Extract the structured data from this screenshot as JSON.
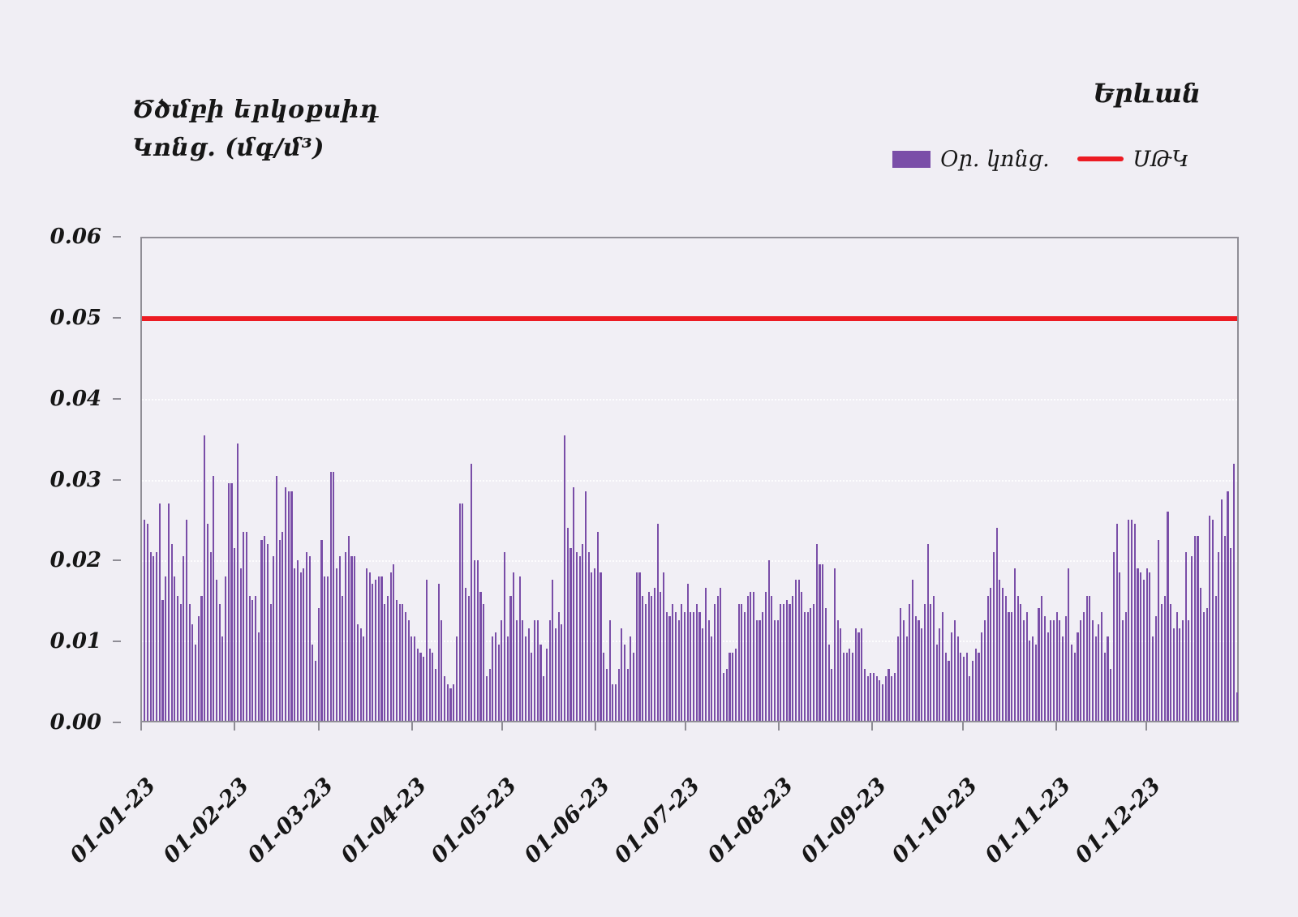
{
  "header": {
    "title_line1": "Ծծմբի երկօքսիդ",
    "title_line2": "Կոնց. (մգ/մ³)",
    "city": "Երևան"
  },
  "legend": {
    "bar_label": "Օր. կոնց.",
    "line_label": "ՍԹԿ",
    "bar_color": "#7643a8",
    "line_color": "#ec1b23"
  },
  "chart_data": {
    "type": "bar",
    "title": "Ծծմբի երկօքսիդ Կոնց. (մգ/մ³) — Երևան",
    "xlabel": "",
    "ylabel": "Կոնց. (մգ/մ³)",
    "ylim": [
      0,
      0.06
    ],
    "y_tick_values": [
      0,
      0.01,
      0.02,
      0.03,
      0.04,
      0.05,
      0.06
    ],
    "y_tick_labels": [
      "0.00",
      "0.01",
      "0.02",
      "0.03",
      "0.04",
      "0.05",
      "0.06"
    ],
    "grid": "faint dotted horizontal gridlines at each y tick",
    "legend_position": "top-right",
    "series_name": "Օր. կոնց.",
    "limit_line": {
      "name": "ՍԹԿ",
      "value": 0.05,
      "color": "#ec1b23"
    },
    "bar_color": "#7a4ea8",
    "x_tick_labels": [
      "01-01-23",
      "01-02-23",
      "01-03-23",
      "01-04-23",
      "01-05-23",
      "01-06-23",
      "01-07-23",
      "01-08-23",
      "01-09-23",
      "01-10-23",
      "01-11-23",
      "01-12-23"
    ],
    "month_start_day_index": [
      0,
      31,
      59,
      90,
      120,
      151,
      181,
      212,
      243,
      273,
      304,
      334
    ],
    "days_total": 365,
    "values": [
      0.025,
      0.0245,
      0.021,
      0.0205,
      0.021,
      0.027,
      0.015,
      0.018,
      0.027,
      0.022,
      0.018,
      0.0155,
      0.0145,
      0.0205,
      0.025,
      0.0145,
      0.012,
      0.0095,
      0.013,
      0.0155,
      0.0355,
      0.0245,
      0.021,
      0.0305,
      0.0175,
      0.0145,
      0.0105,
      0.018,
      0.0295,
      0.0295,
      0.0215,
      0.0345,
      0.019,
      0.0235,
      0.0235,
      0.0155,
      0.015,
      0.0155,
      0.011,
      0.0225,
      0.023,
      0.022,
      0.0145,
      0.0205,
      0.0305,
      0.0225,
      0.0235,
      0.029,
      0.0285,
      0.0285,
      0.019,
      0.02,
      0.0185,
      0.019,
      0.021,
      0.0205,
      0.0095,
      0.0075,
      0.014,
      0.0225,
      0.018,
      0.018,
      0.031,
      0.031,
      0.019,
      0.0205,
      0.0155,
      0.021,
      0.023,
      0.0205,
      0.0205,
      0.012,
      0.0115,
      0.0105,
      0.019,
      0.0185,
      0.017,
      0.0175,
      0.018,
      0.018,
      0.0145,
      0.0155,
      0.0185,
      0.0195,
      0.015,
      0.0145,
      0.0145,
      0.0135,
      0.0125,
      0.0105,
      0.0105,
      0.009,
      0.0085,
      0.008,
      0.0175,
      0.009,
      0.0085,
      0.0065,
      0.017,
      0.0125,
      0.0055,
      0.0045,
      0.004,
      0.0045,
      0.0105,
      0.027,
      0.027,
      0.0165,
      0.0155,
      0.032,
      0.02,
      0.02,
      0.016,
      0.0145,
      0.0055,
      0.0065,
      0.0105,
      0.011,
      0.0095,
      0.0125,
      0.021,
      0.0105,
      0.0155,
      0.0185,
      0.0125,
      0.018,
      0.0125,
      0.0105,
      0.0115,
      0.0085,
      0.0125,
      0.0125,
      0.0095,
      0.0055,
      0.009,
      0.0125,
      0.0175,
      0.0115,
      0.0135,
      0.012,
      0.0355,
      0.024,
      0.0215,
      0.029,
      0.021,
      0.0205,
      0.022,
      0.0285,
      0.021,
      0.0185,
      0.019,
      0.0235,
      0.0185,
      0.0085,
      0.0065,
      0.0125,
      0.0045,
      0.0045,
      0.0065,
      0.0115,
      0.0095,
      0.0065,
      0.0105,
      0.0085,
      0.0185,
      0.0185,
      0.0155,
      0.0145,
      0.016,
      0.0155,
      0.0165,
      0.0245,
      0.016,
      0.0185,
      0.0135,
      0.013,
      0.0145,
      0.0135,
      0.0125,
      0.0145,
      0.0135,
      0.017,
      0.0135,
      0.0135,
      0.0145,
      0.0135,
      0.0115,
      0.0165,
      0.0125,
      0.0105,
      0.0145,
      0.0155,
      0.0165,
      0.006,
      0.0065,
      0.0085,
      0.0085,
      0.009,
      0.0145,
      0.0145,
      0.0135,
      0.0155,
      0.016,
      0.016,
      0.0125,
      0.0125,
      0.0135,
      0.016,
      0.02,
      0.0155,
      0.0125,
      0.0125,
      0.0145,
      0.0145,
      0.015,
      0.0145,
      0.0155,
      0.0175,
      0.0175,
      0.016,
      0.0135,
      0.0135,
      0.014,
      0.0145,
      0.022,
      0.0195,
      0.0195,
      0.014,
      0.0095,
      0.0065,
      0.019,
      0.0125,
      0.0115,
      0.0085,
      0.0085,
      0.009,
      0.0085,
      0.0115,
      0.011,
      0.0115,
      0.0065,
      0.0055,
      0.006,
      0.006,
      0.0055,
      0.005,
      0.0045,
      0.0055,
      0.0065,
      0.0055,
      0.006,
      0.0105,
      0.014,
      0.0125,
      0.0105,
      0.0145,
      0.0175,
      0.013,
      0.0125,
      0.0115,
      0.0145,
      0.022,
      0.0145,
      0.0155,
      0.0095,
      0.0115,
      0.0135,
      0.0085,
      0.0075,
      0.011,
      0.0125,
      0.0105,
      0.0085,
      0.008,
      0.0085,
      0.0055,
      0.0075,
      0.009,
      0.0085,
      0.011,
      0.0125,
      0.0155,
      0.0165,
      0.021,
      0.024,
      0.0175,
      0.0165,
      0.0155,
      0.0135,
      0.0135,
      0.019,
      0.0155,
      0.0145,
      0.0125,
      0.0135,
      0.01,
      0.0105,
      0.0095,
      0.014,
      0.0155,
      0.013,
      0.011,
      0.0125,
      0.0125,
      0.0135,
      0.0125,
      0.0105,
      0.013,
      0.019,
      0.0095,
      0.0085,
      0.011,
      0.0125,
      0.0135,
      0.0155,
      0.0155,
      0.0125,
      0.0105,
      0.012,
      0.0135,
      0.0085,
      0.0105,
      0.0065,
      0.021,
      0.0245,
      0.0185,
      0.0125,
      0.0135,
      0.025,
      0.025,
      0.0245,
      0.019,
      0.0185,
      0.0175,
      0.019,
      0.0185,
      0.0105,
      0.013,
      0.0225,
      0.0145,
      0.0155,
      0.026,
      0.0145,
      0.0115,
      0.0135,
      0.0115,
      0.0125,
      0.021,
      0.0125,
      0.0205,
      0.023,
      0.023,
      0.0165,
      0.0135,
      0.014,
      0.0255,
      0.025,
      0.0155,
      0.021,
      0.0275,
      0.023,
      0.0285,
      0.0215,
      0.032,
      0.0035
    ]
  }
}
